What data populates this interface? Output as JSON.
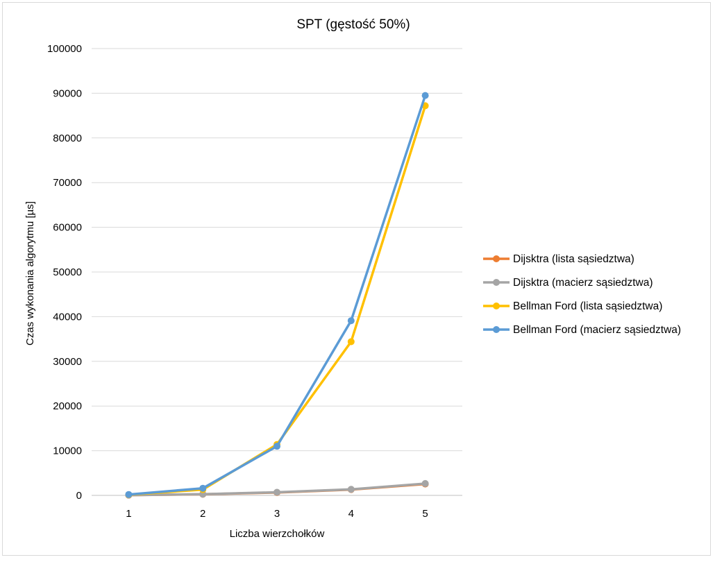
{
  "chart_data": {
    "type": "line",
    "title": "SPT (gęstość 50%)",
    "xlabel": "Liczba wierzchołków",
    "ylabel": "Czas wykonania algorytmu [µs]",
    "categories": [
      "1",
      "2",
      "3",
      "4",
      "5"
    ],
    "ylim": [
      0,
      100000
    ],
    "yticks": [
      "0",
      "10000",
      "20000",
      "30000",
      "40000",
      "50000",
      "60000",
      "70000",
      "80000",
      "90000",
      "100000"
    ],
    "grid": true,
    "legend_position": "right",
    "series": [
      {
        "name": "Dijsktra (lista sąsiedztwa)",
        "color": "#ED7D31",
        "values": [
          50,
          250,
          650,
          1300,
          2550
        ]
      },
      {
        "name": "Dijsktra (macierz sąsiedztwa)",
        "color": "#A5A5A5",
        "values": [
          60,
          280,
          700,
          1350,
          2650
        ]
      },
      {
        "name": "Bellman Ford (lista sąsiedztwa)",
        "color": "#FFC000",
        "values": [
          150,
          1300,
          11400,
          34400,
          87200
        ]
      },
      {
        "name": "Bellman Ford (macierz sąsiedztwa)",
        "color": "#5B9BD5",
        "values": [
          200,
          1600,
          11000,
          39100,
          89500
        ]
      }
    ]
  }
}
